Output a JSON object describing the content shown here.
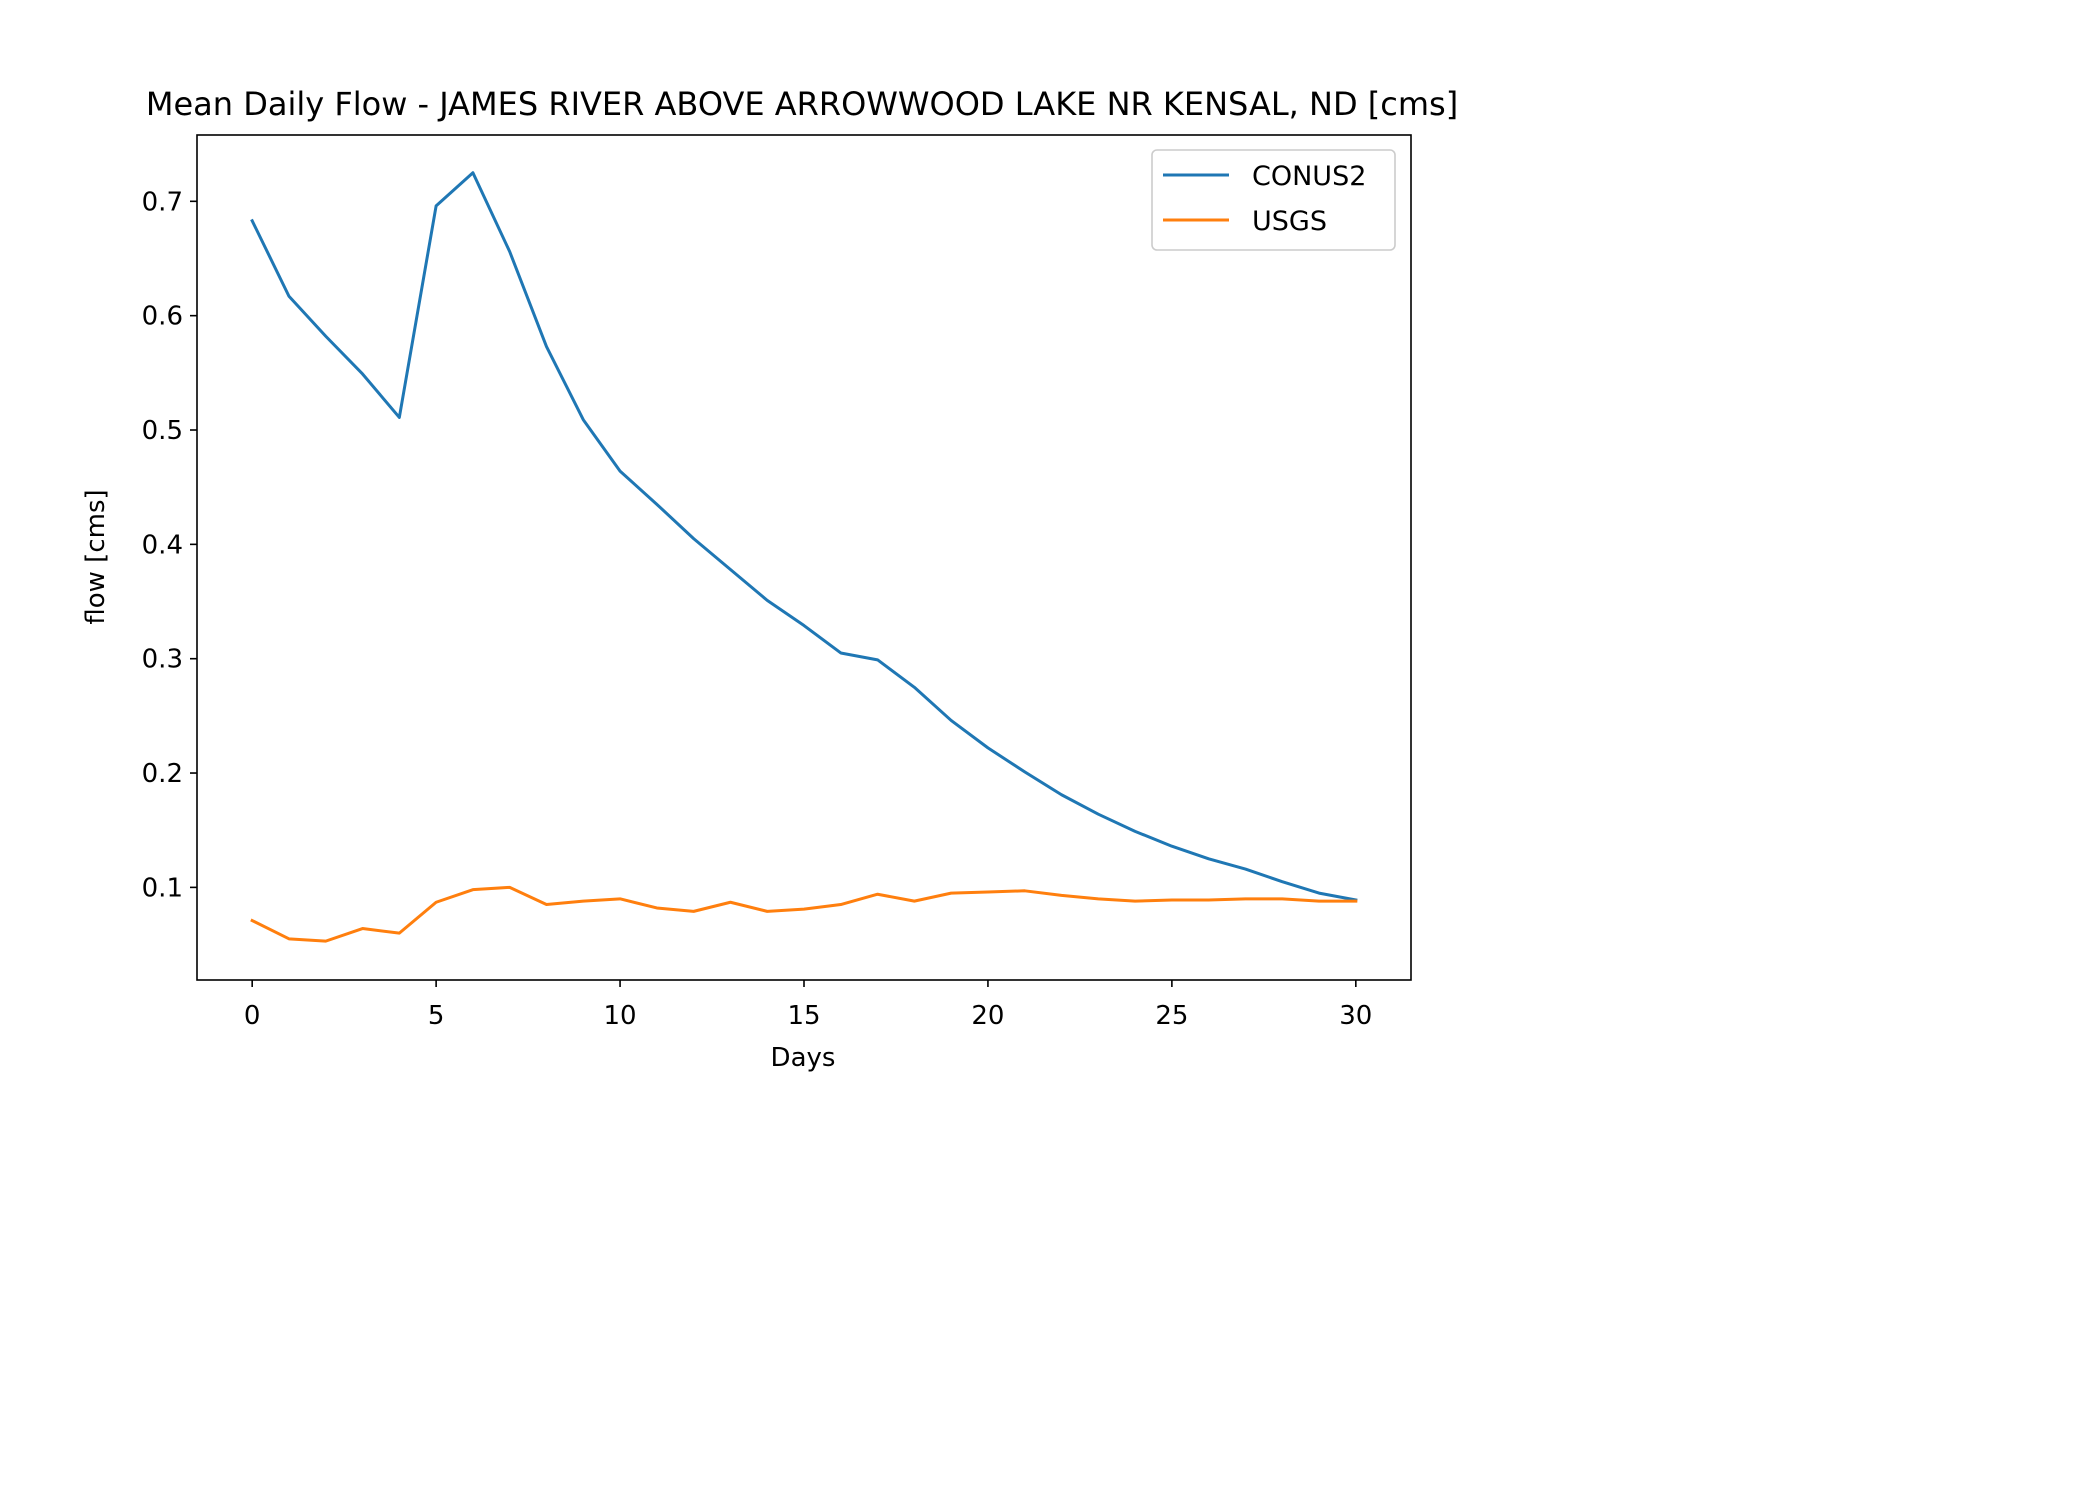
{
  "chart_data": {
    "type": "line",
    "title": "Mean Daily Flow - JAMES RIVER ABOVE ARROWWOOD LAKE NR KENSAL, ND [cms]",
    "xlabel": "Days",
    "ylabel": "flow [cms]",
    "xlim": [
      -1.5,
      31.5
    ],
    "ylim": [
      0.019,
      0.758
    ],
    "xticks": [
      0,
      5,
      10,
      15,
      20,
      25,
      30
    ],
    "xtick_labels": [
      "0",
      "5",
      "10",
      "15",
      "20",
      "25",
      "30"
    ],
    "yticks": [
      0.1,
      0.2,
      0.3,
      0.4,
      0.5,
      0.6,
      0.7
    ],
    "ytick_labels": [
      "0.1",
      "0.2",
      "0.3",
      "0.4",
      "0.5",
      "0.6",
      "0.7"
    ],
    "grid": false,
    "legend_position": "upper right",
    "x": [
      0,
      1,
      2,
      3,
      4,
      5,
      6,
      7,
      8,
      9,
      10,
      11,
      12,
      13,
      14,
      15,
      16,
      17,
      18,
      19,
      20,
      21,
      22,
      23,
      24,
      25,
      26,
      27,
      28,
      29,
      30
    ],
    "series": [
      {
        "name": "CONUS2",
        "color": "#1f77b4",
        "values": [
          0.683,
          0.617,
          0.582,
          0.549,
          0.511,
          0.696,
          0.725,
          0.656,
          0.573,
          0.509,
          0.464,
          0.435,
          0.405,
          0.378,
          0.351,
          0.329,
          0.305,
          0.299,
          0.275,
          0.246,
          0.222,
          0.201,
          0.181,
          0.164,
          0.149,
          0.136,
          0.125,
          0.116,
          0.105,
          0.095,
          0.089
        ]
      },
      {
        "name": "USGS",
        "color": "#ff7f0e",
        "values": [
          0.071,
          0.055,
          0.053,
          0.064,
          0.06,
          0.087,
          0.098,
          0.1,
          0.085,
          0.088,
          0.09,
          0.082,
          0.079,
          0.087,
          0.079,
          0.081,
          0.085,
          0.094,
          0.088,
          0.095,
          0.096,
          0.097,
          0.093,
          0.09,
          0.088,
          0.089,
          0.089,
          0.09,
          0.09,
          0.088,
          0.088
        ]
      }
    ]
  }
}
